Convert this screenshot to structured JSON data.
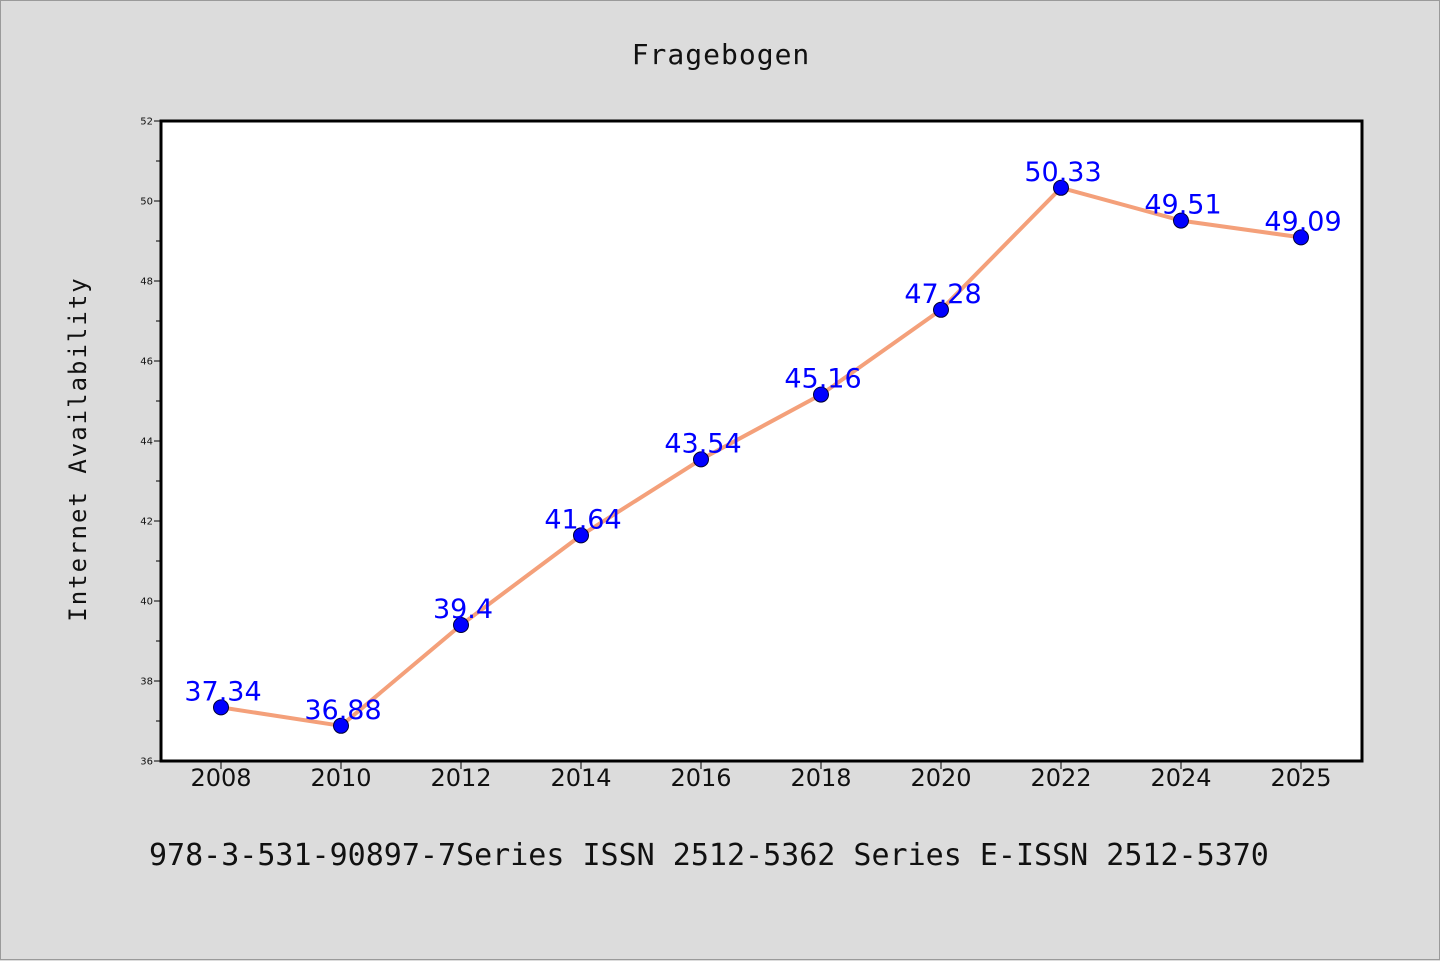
{
  "chart_data": {
    "type": "line",
    "title": "Fragebogen",
    "xlabel": "",
    "ylabel": "Internet Availability",
    "categories": [
      "2008",
      "2010",
      "2012",
      "2014",
      "2016",
      "2018",
      "2020",
      "2022",
      "2024",
      "2025"
    ],
    "series": [
      {
        "values": [
          37.34,
          36.88,
          39.4,
          41.64,
          43.54,
          45.16,
          47.28,
          50.33,
          49.51,
          49.09
        ],
        "labels": [
          "37.34",
          "36.88",
          "39.4",
          "41.64",
          "43.54",
          "45.16",
          "47.28",
          "50.33",
          "49.51",
          "49.09"
        ],
        "line_color": "#f4a07a",
        "marker_color": "#0000ff"
      }
    ],
    "ylim": [
      36,
      52
    ],
    "yticks": [
      "36",
      "38",
      "40",
      "42",
      "44",
      "46",
      "48",
      "50",
      "52"
    ],
    "grid": false,
    "legend": "none"
  },
  "footer": "978-3-531-90897-7Series ISSN 2512-5362 Series E-ISSN 2512-5370",
  "colors": {
    "background": "#dcdcdc",
    "plot_background": "#ffffff",
    "line": "#f4a07a",
    "marker": "#0000ff",
    "data_label": "#0000ff"
  }
}
